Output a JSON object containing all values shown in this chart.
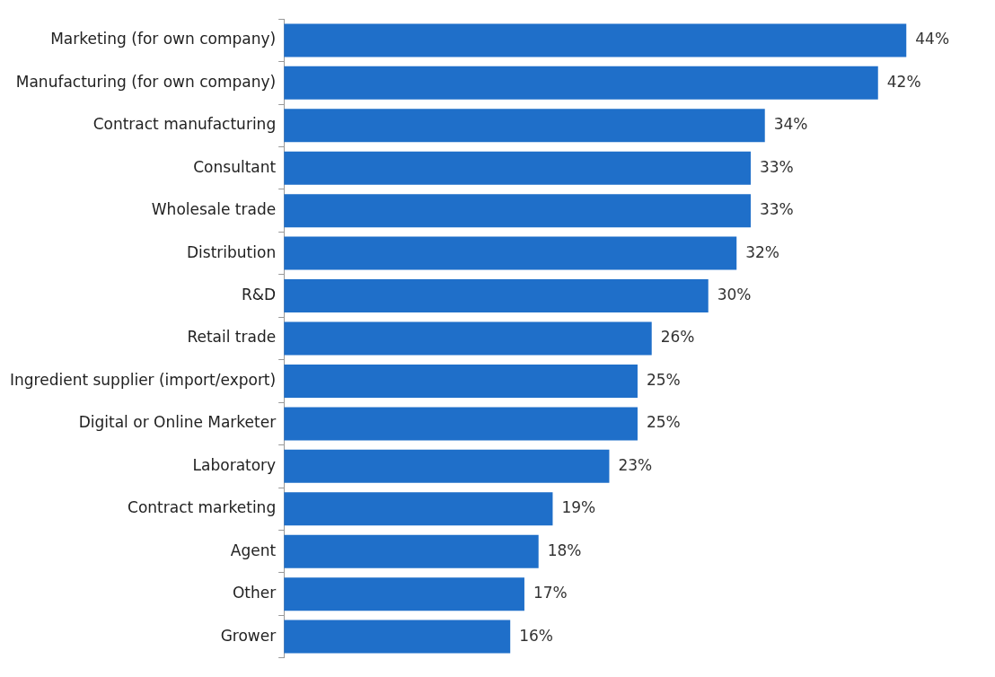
{
  "chart_data": {
    "type": "bar",
    "orientation": "horizontal",
    "categories": [
      "Marketing (for own company)",
      "Manufacturing (for own company)",
      "Contract manufacturing",
      "Consultant",
      "Wholesale trade",
      "Distribution",
      "R&D",
      "Retail trade",
      "Ingredient supplier (import/export)",
      "Digital or Online Marketer",
      "Laboratory",
      "Contract marketing",
      "Agent",
      "Other",
      "Grower"
    ],
    "values": [
      44,
      42,
      34,
      33,
      33,
      32,
      30,
      26,
      25,
      25,
      23,
      19,
      18,
      17,
      16
    ],
    "value_labels": [
      "44%",
      "42%",
      "34%",
      "33%",
      "33%",
      "32%",
      "30%",
      "26%",
      "25%",
      "25%",
      "23%",
      "19%",
      "18%",
      "17%",
      "16%"
    ],
    "color": "#1f6fc9",
    "legend": false,
    "tick_labels": "y"
  }
}
